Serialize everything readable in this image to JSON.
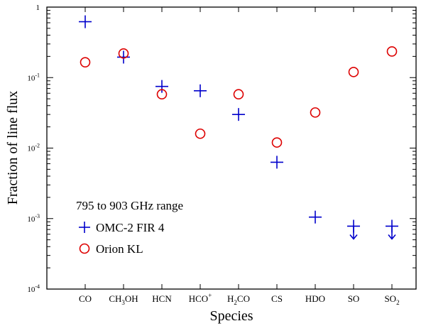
{
  "chart_data": {
    "type": "scatter",
    "xlabel": "Species",
    "ylabel": "Fraction of line flux",
    "y_scale": "log",
    "ylim": [
      0.0001,
      1
    ],
    "y_ticks": [
      {
        "value": 1,
        "base": "1",
        "exp": ""
      },
      {
        "value": 0.1,
        "base": "10",
        "exp": "-1"
      },
      {
        "value": 0.01,
        "base": "10",
        "exp": "-2"
      },
      {
        "value": 0.001,
        "base": "10",
        "exp": "-3"
      },
      {
        "value": 0.0001,
        "base": "10",
        "exp": "-4"
      }
    ],
    "categories": [
      {
        "base": "CO",
        "sub": "",
        "after": "",
        "sup": ""
      },
      {
        "base": "CH",
        "sub": "3",
        "after": "OH",
        "sup": ""
      },
      {
        "base": "HCN",
        "sub": "",
        "after": "",
        "sup": ""
      },
      {
        "base": "HCO",
        "sub": "",
        "after": "",
        "sup": "+"
      },
      {
        "base": "H",
        "sub": "2",
        "after": "CO",
        "sup": ""
      },
      {
        "base": "CS",
        "sub": "",
        "after": "",
        "sup": ""
      },
      {
        "base": "HDO",
        "sub": "",
        "after": "",
        "sup": ""
      },
      {
        "base": "SO",
        "sub": "",
        "after": "",
        "sup": ""
      },
      {
        "base": "SO",
        "sub": "2",
        "after": "",
        "sup": ""
      }
    ],
    "legend": {
      "title": "795 to 903 GHz range",
      "position": "bottom-left"
    },
    "series": [
      {
        "name": "OMC-2 FIR 4",
        "marker": "plus",
        "color": "#0000cc",
        "values": [
          0.62,
          0.195,
          0.075,
          0.065,
          0.03,
          0.0063,
          0.00105,
          0.00078,
          0.00078
        ],
        "upper_limit": [
          false,
          false,
          false,
          false,
          false,
          false,
          false,
          true,
          true
        ]
      },
      {
        "name": "Orion KL",
        "marker": "circle",
        "color": "#dd0000",
        "values": [
          0.165,
          0.22,
          0.058,
          0.016,
          0.058,
          0.012,
          0.032,
          0.12,
          0.235
        ],
        "upper_limit": [
          false,
          false,
          false,
          false,
          false,
          false,
          false,
          false,
          false
        ]
      }
    ]
  }
}
